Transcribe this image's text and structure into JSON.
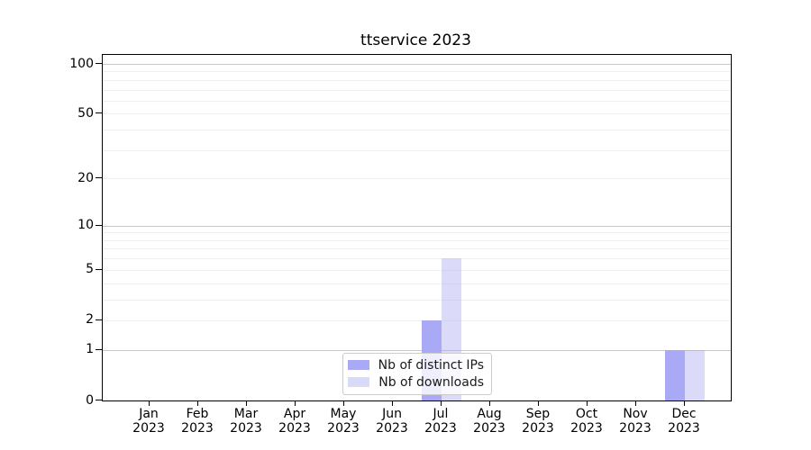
{
  "title": "ttservice 2023",
  "chart_data": {
    "type": "bar",
    "title": "ttservice 2023",
    "categories": [
      "Jan",
      "Feb",
      "Mar",
      "Apr",
      "May",
      "Jun",
      "Jul",
      "Aug",
      "Sep",
      "Oct",
      "Nov",
      "Dec"
    ],
    "year": "2023",
    "series": [
      {
        "name": "Nb of distinct IPs",
        "color": "#a9a9f6",
        "values": [
          0,
          0,
          0,
          0,
          0,
          0,
          2,
          0,
          0,
          0,
          0,
          1
        ]
      },
      {
        "name": "Nb of downloads",
        "color": "#d9d9f8",
        "values": [
          0,
          0,
          0,
          0,
          0,
          0,
          6,
          0,
          0,
          0,
          0,
          1
        ]
      }
    ],
    "yscale": "log1p",
    "ylim": [
      0,
      113
    ],
    "yticks": [
      0,
      1,
      2,
      5,
      10,
      20,
      50,
      100
    ],
    "major_gridlines": [
      1,
      10,
      100
    ],
    "minor_gridlines": [
      2,
      3,
      4,
      5,
      6,
      7,
      8,
      9,
      20,
      30,
      40,
      50,
      60,
      70,
      80,
      90
    ],
    "grid": true,
    "legend_position": "lower center",
    "xlabel": "",
    "ylabel": ""
  },
  "legend": {
    "items": [
      {
        "label": "Nb of distinct IPs",
        "color": "#a9a9f6"
      },
      {
        "label": "Nb of downloads",
        "color": "#d9d9f8"
      }
    ]
  },
  "colors": {
    "ips_bar": "#a9a9f6",
    "downloads_bar_rgba": "rgba(170,170,240,0.42)",
    "minor_grid": "#efefef",
    "major_grid": "#c9c9c9",
    "axis": "#000000",
    "legend_border": "#cccccc"
  }
}
